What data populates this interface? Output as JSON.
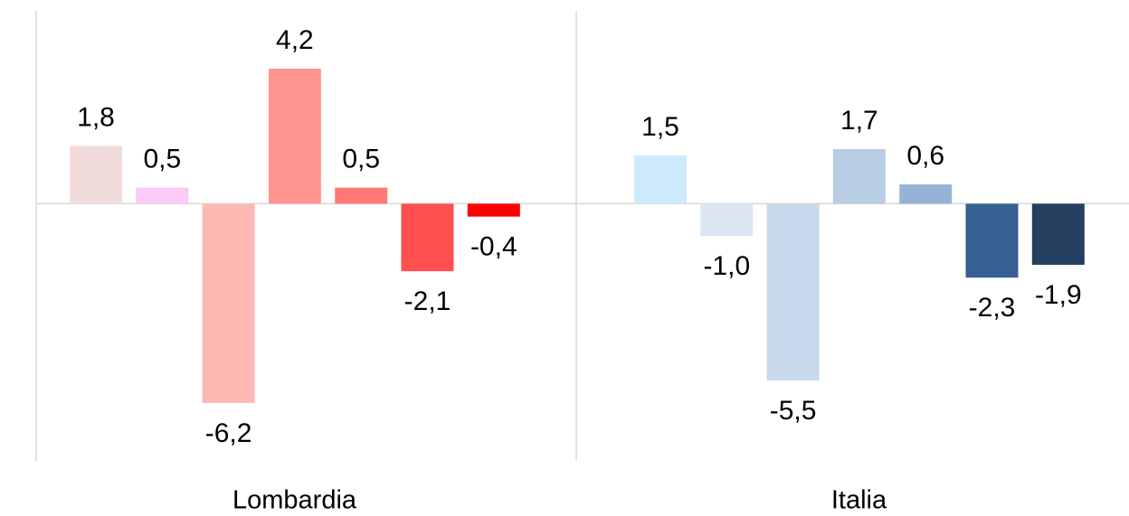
{
  "chart_data": {
    "type": "bar",
    "categories": [
      "Lombardia",
      "Italia"
    ],
    "groups": [
      {
        "values": [
          1.8,
          0.5,
          -6.2,
          4.2,
          0.5,
          -2.1,
          -0.4
        ],
        "value_labels": [
          "1,8",
          "0,5",
          "-6,2",
          "4,2",
          "0,5",
          "-2,1",
          "-0,4"
        ],
        "colors": [
          "#f2dcdb",
          "#fdc9f7",
          "#ffb9b5",
          "#ff9590",
          "#ff7874",
          "#ff4f4f",
          "#ff0000"
        ]
      },
      {
        "values": [
          1.5,
          -1.0,
          -5.5,
          1.7,
          0.6,
          -2.3,
          -1.9
        ],
        "value_labels": [
          "1,5",
          "-1,0",
          "-5,5",
          "1,7",
          "0,6",
          "-2,3",
          "-1,9"
        ],
        "colors": [
          "#cdeafb",
          "#dce6f2",
          "#c9d8ea",
          "#b9cde4",
          "#95b3d7",
          "#366092",
          "#243f60"
        ]
      }
    ],
    "ylim": [
      -8,
      6
    ]
  }
}
